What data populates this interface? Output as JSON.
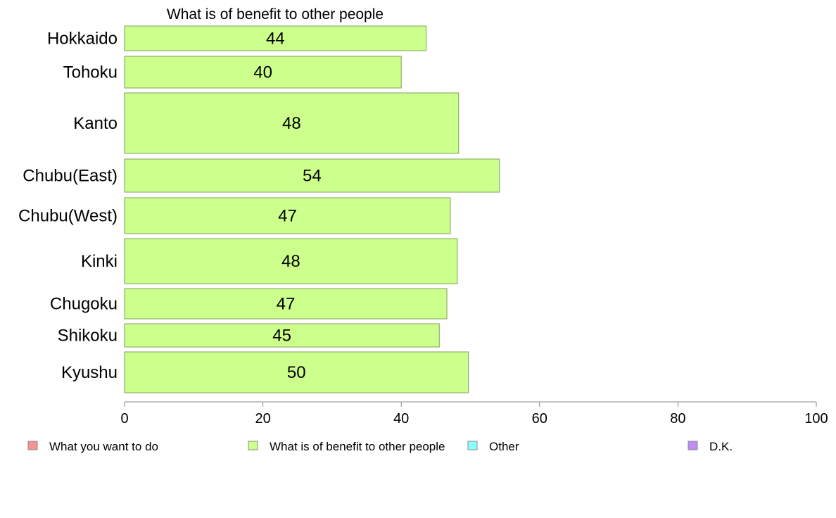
{
  "chart_data": {
    "type": "bar",
    "orientation": "horizontal",
    "title": "What is of benefit to other people",
    "categories": [
      "Hokkaido",
      "Tohoku",
      "Kanto",
      "Chubu(East)",
      "Chubu(West)",
      "Kinki",
      "Chugoku",
      "Shikoku",
      "Kyushu"
    ],
    "series": [
      {
        "name": "What is of benefit to other people",
        "values": [
          43.6,
          40.0,
          48.3,
          54.2,
          47.1,
          48.1,
          46.6,
          45.5,
          49.7
        ],
        "labels": [
          "44",
          "40",
          "48",
          "54",
          "47",
          "48",
          "47",
          "45",
          "50"
        ]
      }
    ],
    "xlim": [
      0,
      100
    ],
    "xticks": [
      0,
      20,
      40,
      60,
      80,
      100
    ],
    "xtick_labels": [
      "0",
      "20",
      "40",
      "60",
      "80",
      "100"
    ],
    "grid": false,
    "legend": {
      "placement": "bottom",
      "entries": [
        {
          "label": "What you want to do",
          "color": "#f99393"
        },
        {
          "label": "What is of benefit to other people",
          "color": "#ccff8c"
        },
        {
          "label": "Other",
          "color": "#8cffff"
        },
        {
          "label": "D.K.",
          "color": "#bf8cf9"
        }
      ]
    },
    "colors": {
      "bar_fill": "#ccff8c",
      "bar_stroke": "#7fa35a",
      "axis": "#888888"
    }
  }
}
